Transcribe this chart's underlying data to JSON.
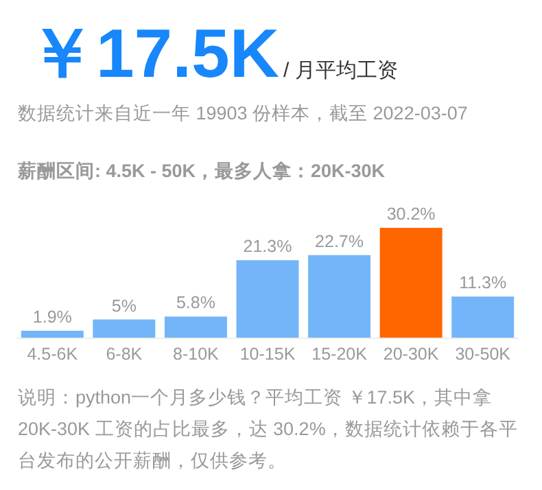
{
  "chart_data": {
    "type": "bar",
    "title": "￥17.5K",
    "subtitle": "/ 月平均工资",
    "annotations": [
      "数据统计来自近一年 19903 份样本，截至 2022-03-07",
      "薪酬区间: 4.5K - 50K，最多人拿：20K-30K",
      "说明：python一个月多少钱？平均工资 ￥17.5K，其中拿 20K-30K 工资的占比最多，达 30.2%，数据统计依赖于各平台发布的公开薪酬，仅供参考。"
    ],
    "categories": [
      "4.5-6K",
      "6-8K",
      "8-10K",
      "10-15K",
      "15-20K",
      "20-30K",
      "30-50K"
    ],
    "values": [
      1.9,
      5,
      5.8,
      21.3,
      22.7,
      30.2,
      11.3
    ],
    "value_labels": [
      "1.9%",
      "5%",
      "5.8%",
      "21.3%",
      "22.7%",
      "30.2%",
      "11.3%"
    ],
    "colors": [
      "#74b5fa",
      "#74b5fa",
      "#74b5fa",
      "#74b5fa",
      "#74b5fa",
      "#ff6600",
      "#74b5fa"
    ]
  }
}
